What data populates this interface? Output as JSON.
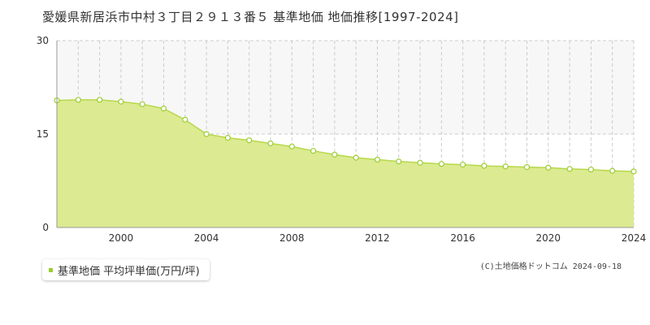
{
  "title": "愛媛県新居浜市中村３丁目２９１３番５ 基準地価 地価推移[1997-2024]",
  "credit": "(C)土地価格ドットコム 2024-09-18",
  "colors": {
    "fill": "#dcea91",
    "line": "#b7d84a",
    "marker": "#9acd32",
    "legend": "#9acd32"
  },
  "chart_data": {
    "type": "area",
    "title": "",
    "xlabel": "",
    "ylabel": "",
    "xlim": [
      1997,
      2024
    ],
    "ylim": [
      0,
      30
    ],
    "yticks": [
      0,
      15,
      30
    ],
    "xticks": [
      2000,
      2004,
      2008,
      2012,
      2016,
      2020,
      2024
    ],
    "grid": true,
    "legend": {
      "position": "bottom-left",
      "label": "基準地価 平均坪単価(万円/坪)"
    },
    "series": [
      {
        "name": "基準地価 平均坪単価(万円/坪)",
        "x": [
          1997,
          1998,
          1999,
          2000,
          2001,
          2002,
          2003,
          2004,
          2005,
          2006,
          2007,
          2008,
          2009,
          2010,
          2011,
          2012,
          2013,
          2014,
          2015,
          2016,
          2017,
          2018,
          2019,
          2020,
          2021,
          2022,
          2023,
          2024
        ],
        "values": [
          20.4,
          20.5,
          20.5,
          20.2,
          19.8,
          19.1,
          17.3,
          15.0,
          14.4,
          14.0,
          13.5,
          13.0,
          12.3,
          11.7,
          11.2,
          10.9,
          10.6,
          10.4,
          10.2,
          10.1,
          9.9,
          9.8,
          9.7,
          9.6,
          9.4,
          9.3,
          9.1,
          9.0
        ]
      }
    ]
  }
}
